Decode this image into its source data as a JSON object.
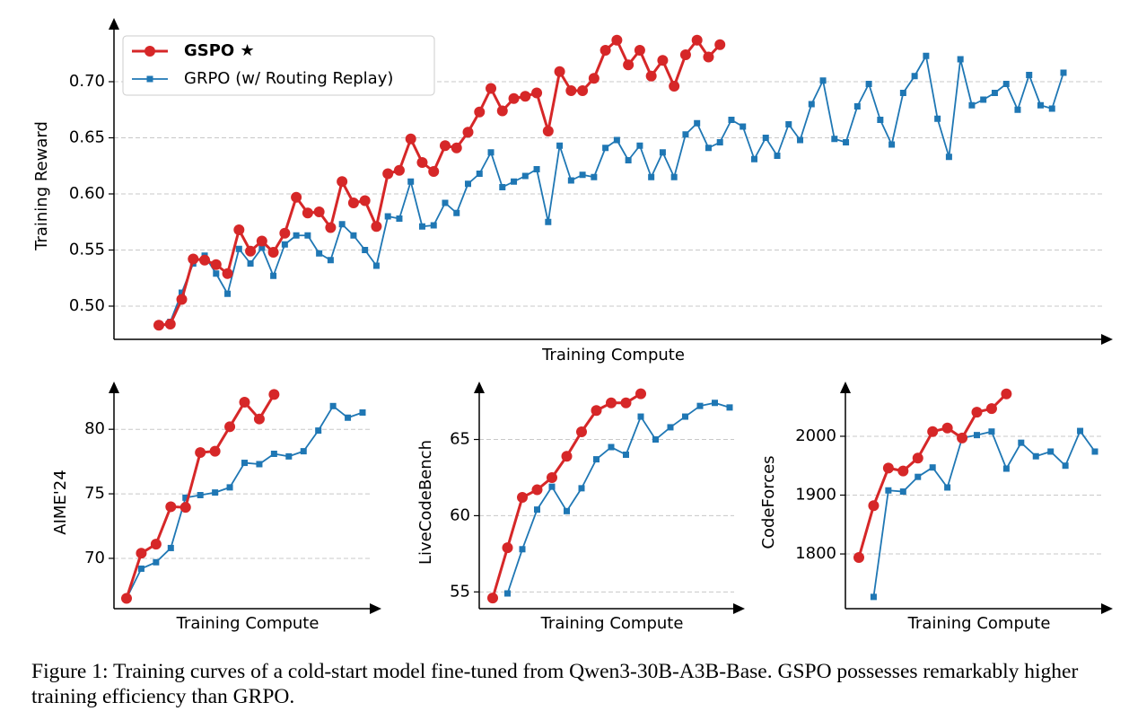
{
  "chart_data": [
    {
      "type": "line",
      "ylabel": "Training Reward",
      "xlabel": "Training Compute",
      "ylim": [
        0.4704,
        0.7568
      ],
      "yticks": [
        {
          "value": 0.5,
          "label": "0.50"
        },
        0.55,
        {
          "value": 0.6,
          "label": "0.60"
        },
        0.65,
        {
          "value": 0.7,
          "label": "0.70"
        }
      ],
      "grid": true,
      "legend": "upper left",
      "series": [
        {
          "name": "GSPO ★",
          "color": "#d62728",
          "values": [
            0.483,
            0.484,
            0.506,
            0.542,
            0.541,
            0.537,
            0.529,
            0.568,
            0.549,
            0.558,
            0.548,
            0.565,
            0.597,
            0.583,
            0.584,
            0.57,
            0.611,
            0.592,
            0.594,
            0.571,
            0.618,
            0.621,
            0.649,
            0.628,
            0.62,
            0.643,
            0.641,
            0.655,
            0.673,
            0.694,
            0.674,
            0.685,
            0.687,
            0.69,
            0.656,
            0.709,
            0.692,
            0.692,
            0.703,
            0.728,
            0.737,
            0.715,
            0.728,
            0.705,
            0.719,
            0.696,
            0.724,
            0.737,
            0.722,
            0.733,
            null,
            null,
            null,
            null,
            null,
            null,
            null,
            null,
            null,
            null,
            null,
            null,
            null,
            null,
            null,
            null,
            null,
            null,
            null,
            null,
            null,
            null,
            null,
            null,
            null,
            null,
            null,
            null,
            null,
            null
          ]
        },
        {
          "name": "GRPO (w/ Routing Replay)",
          "color": "#1f77b4",
          "values": [
            null,
            0.486,
            0.512,
            0.538,
            0.545,
            0.529,
            0.511,
            0.551,
            0.538,
            0.552,
            0.527,
            0.555,
            0.563,
            0.563,
            0.547,
            0.541,
            0.573,
            0.563,
            0.55,
            0.536,
            0.58,
            0.578,
            0.611,
            0.571,
            0.572,
            0.592,
            0.583,
            0.609,
            0.618,
            0.637,
            0.606,
            0.611,
            0.616,
            0.622,
            0.575,
            0.643,
            0.612,
            0.617,
            0.615,
            0.641,
            0.648,
            0.63,
            0.643,
            0.615,
            0.637,
            0.615,
            0.653,
            0.663,
            0.641,
            0.646,
            0.666,
            0.66,
            0.631,
            0.65,
            0.634,
            0.662,
            0.648,
            0.68,
            0.701,
            0.649,
            0.646,
            0.678,
            0.698,
            0.666,
            0.644,
            0.69,
            0.705,
            0.723,
            0.667,
            0.633,
            0.72,
            0.679,
            0.684,
            0.69,
            0.698,
            0.675,
            0.706,
            0.679,
            0.676,
            0.708
          ]
        }
      ]
    },
    {
      "type": "line",
      "ylabel": "AIME'24",
      "xlabel": "Training Compute",
      "ylim": [
        66.1,
        83.7
      ],
      "yticks": [
        70,
        75,
        80
      ],
      "grid": true,
      "series": [
        {
          "color": "#d62728",
          "values": [
            66.9,
            70.4,
            71.1,
            74.0,
            73.95,
            78.2,
            78.3,
            80.2,
            82.1,
            80.8,
            82.7,
            null,
            null,
            null,
            null,
            null,
            null
          ]
        },
        {
          "color": "#1f77b4",
          "values": [
            66.9,
            69.2,
            69.7,
            70.8,
            74.7,
            74.9,
            75.1,
            75.5,
            77.4,
            77.3,
            78.1,
            77.9,
            78.3,
            79.9,
            81.8,
            80.9,
            81.3
          ]
        }
      ]
    },
    {
      "type": "line",
      "ylabel": "LiveCodeBench",
      "xlabel": "Training Compute",
      "ylim": [
        53.9,
        68.8
      ],
      "yticks": [
        55,
        60,
        65
      ],
      "grid": true,
      "series": [
        {
          "color": "#d62728",
          "values": [
            54.6,
            57.9,
            61.2,
            61.7,
            62.5,
            63.9,
            65.5,
            66.9,
            67.4,
            67.4,
            68.0,
            null,
            null,
            null,
            null,
            null,
            null
          ]
        },
        {
          "color": "#1f77b4",
          "values": [
            null,
            54.9,
            57.8,
            60.4,
            61.9,
            60.3,
            61.8,
            63.7,
            64.5,
            64.0,
            66.5,
            65.0,
            65.8,
            66.5,
            67.2,
            67.4,
            67.1
          ]
        }
      ]
    },
    {
      "type": "line",
      "ylabel": "CodeForces",
      "xlabel": "Training Compute",
      "ylim": [
        1707,
        2093
      ],
      "yticks": [
        1800,
        1900,
        2000
      ],
      "grid": true,
      "series": [
        {
          "color": "#d62728",
          "values": [
            1794,
            1882,
            1946,
            1941,
            1963,
            2008,
            2014,
            1997,
            2041,
            2047,
            2072,
            null,
            null,
            null,
            null,
            null,
            null
          ]
        },
        {
          "color": "#1f77b4",
          "values": [
            null,
            1727,
            1908,
            1906,
            1931,
            1947,
            1913,
            1997,
            2002,
            2008,
            1945,
            1989,
            1966,
            1974,
            1950,
            2009,
            1974
          ]
        }
      ]
    }
  ],
  "caption": "Figure 1: Training curves of a cold-start model fine-tuned from Qwen3-30B-A3B-Base. GSPO possesses remarkably higher training efficiency than GRPO."
}
